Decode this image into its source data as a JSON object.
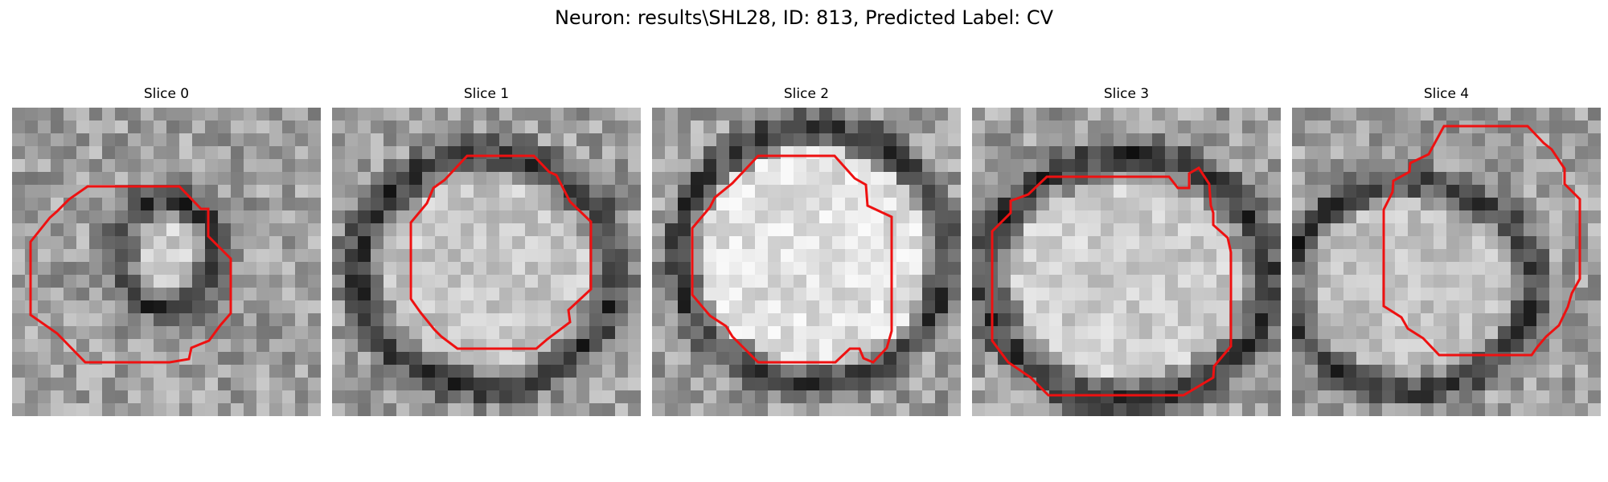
{
  "figure": {
    "title": "Neuron: results\\SHL28, ID: 813, Predicted Label: CV"
  },
  "panels": [
    {
      "title": "Slice 0",
      "seed": 11,
      "style": "ring-small"
    },
    {
      "title": "Slice 1",
      "seed": 23,
      "style": "ring-large"
    },
    {
      "title": "Slice 2",
      "seed": 37,
      "style": "bright-disc"
    },
    {
      "title": "Slice 3",
      "seed": 41,
      "style": "ring-wide"
    },
    {
      "title": "Slice 4",
      "seed": 53,
      "style": "ring-offset"
    }
  ],
  "colors": {
    "contour": "#ee1111"
  }
}
